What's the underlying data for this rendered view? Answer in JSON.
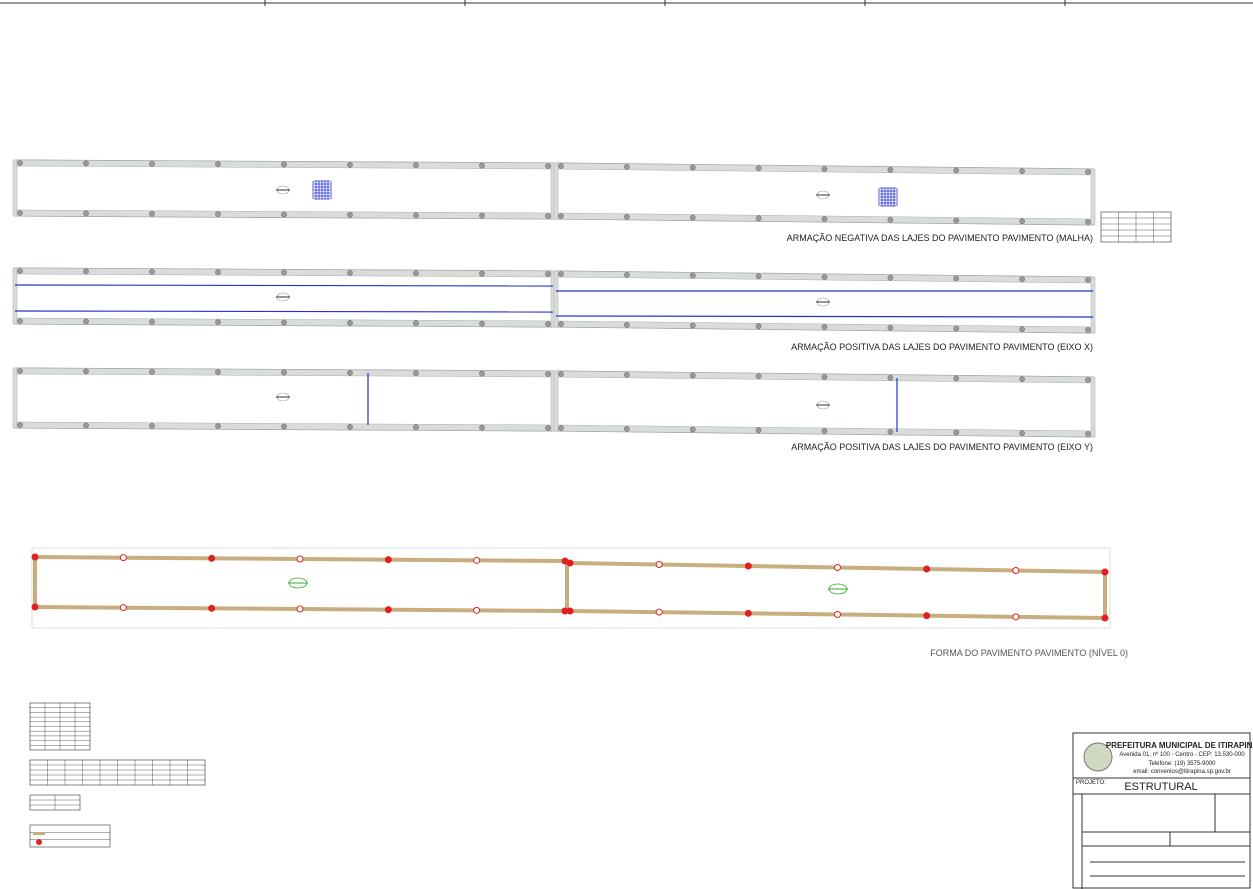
{
  "drawings": [
    {
      "title": "ARMAÇÃO NEGATIVA DAS LAJES DO PAVIMENTO PAVIMENTO (MALHA)"
    },
    {
      "title": "ARMAÇÃO POSITIVA DAS LAJES DO PAVIMENTO PAVIMENTO (EIXO X)"
    },
    {
      "title": "ARMAÇÃO POSITIVA DAS LAJES DO PAVIMENTO PAVIMENTO (EIXO Y)"
    },
    {
      "title": "FORMA DO PAVIMENTO PAVIMENTO (NÍVEL 0)"
    }
  ],
  "title_block": {
    "organization": "PREFEITURA MUNICIPAL DE ITIRAPINA",
    "address": "Avenida 01, nº 100 - Centro - CEP: 13.530-000",
    "phone": "Telefone: (19) 3575-9000",
    "email": "email: convenios@itirapina.sp.gov.br",
    "project_label": "PROJETO:",
    "project": "ESTRUTURAL"
  }
}
